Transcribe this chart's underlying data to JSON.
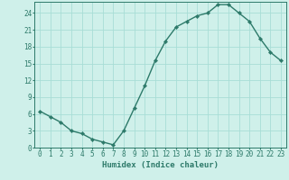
{
  "x": [
    0,
    1,
    2,
    3,
    4,
    5,
    6,
    7,
    8,
    9,
    10,
    11,
    12,
    13,
    14,
    15,
    16,
    17,
    18,
    19,
    20,
    21,
    22,
    23
  ],
  "y": [
    6.5,
    5.5,
    4.5,
    3.0,
    2.5,
    1.5,
    1.0,
    0.5,
    3.0,
    7.0,
    11.0,
    15.5,
    19.0,
    21.5,
    22.5,
    23.5,
    24.0,
    25.5,
    25.5,
    24.0,
    22.5,
    19.5,
    17.0,
    15.5
  ],
  "line_color": "#2d7a6a",
  "marker": "D",
  "markersize": 2.2,
  "linewidth": 1.0,
  "bg_color": "#cff0ea",
  "grid_color": "#a8ddd6",
  "xlabel": "Humidex (Indice chaleur)",
  "xlim": [
    -0.5,
    23.5
  ],
  "ylim": [
    0,
    26
  ],
  "xticks": [
    0,
    1,
    2,
    3,
    4,
    5,
    6,
    7,
    8,
    9,
    10,
    11,
    12,
    13,
    14,
    15,
    16,
    17,
    18,
    19,
    20,
    21,
    22,
    23
  ],
  "yticks": [
    0,
    3,
    6,
    9,
    12,
    15,
    18,
    21,
    24
  ],
  "tick_fontsize": 5.5,
  "xlabel_fontsize": 6.5,
  "tick_color": "#2d7a6a",
  "spine_color": "#2d7a6a"
}
